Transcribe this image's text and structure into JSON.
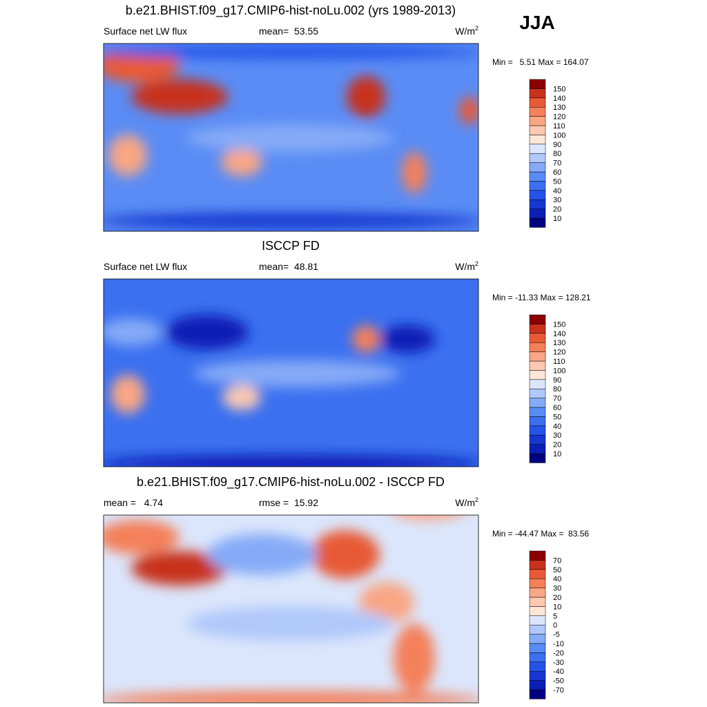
{
  "season": "JJA",
  "panels": [
    {
      "title": "b.e21.BHIST.f09_g17.CMIP6-hist-noLu.002 (yrs 1989-2013)",
      "left": "Surface net LW flux",
      "center": "mean=  53.55",
      "units": {
        "base": "W/m",
        "sup": "2"
      },
      "minmax": "Min =   5.51 Max = 164.07",
      "colorbar": {
        "labels": [
          "10",
          "20",
          "30",
          "40",
          "50",
          "60",
          "70",
          "80",
          "90",
          "100",
          "110",
          "120",
          "130",
          "140",
          "150"
        ],
        "colors": [
          "#000080",
          "#0a1fb5",
          "#1737d0",
          "#2453e8",
          "#3b70f0",
          "#5a8cf5",
          "#85aaf7",
          "#b0c8fa",
          "#dbe6fc",
          "#fde6d6",
          "#fcc8b0",
          "#f9a684",
          "#f4805a",
          "#e85a36",
          "#c8321c",
          "#8b0000"
        ]
      }
    },
    {
      "title": "ISCCP FD",
      "left": "Surface net LW flux",
      "center": "mean=  48.81",
      "units": {
        "base": "W/m",
        "sup": "2"
      },
      "minmax": "Min = -11.33 Max = 128.21",
      "colorbar": {
        "labels": [
          "10",
          "20",
          "30",
          "40",
          "50",
          "60",
          "70",
          "80",
          "90",
          "100",
          "110",
          "120",
          "130",
          "140",
          "150"
        ],
        "colors": [
          "#000080",
          "#0a1fb5",
          "#1737d0",
          "#2453e8",
          "#3b70f0",
          "#5a8cf5",
          "#85aaf7",
          "#b0c8fa",
          "#dbe6fc",
          "#fde6d6",
          "#fcc8b0",
          "#f9a684",
          "#f4805a",
          "#e85a36",
          "#c8321c",
          "#8b0000"
        ]
      }
    },
    {
      "title": "b.e21.BHIST.f09_g17.CMIP6-hist-noLu.002 - ISCCP FD",
      "left": "mean =   4.74",
      "center": "rmse =  15.92",
      "units": {
        "base": "W/m",
        "sup": "2"
      },
      "minmax": "Min = -44.47 Max =  83.56",
      "colorbar": {
        "labels": [
          "-70",
          "-50",
          "-40",
          "-30",
          "-20",
          "-10",
          "-5",
          "0",
          "5",
          "10",
          "20",
          "30",
          "40",
          "50",
          "70"
        ],
        "colors": [
          "#000080",
          "#0a1fb5",
          "#1737d0",
          "#2453e8",
          "#3b70f0",
          "#5a8cf5",
          "#85aaf7",
          "#b0c8fa",
          "#dbe6fc",
          "#fde6d6",
          "#fcc8b0",
          "#f9a684",
          "#f4805a",
          "#e85a36",
          "#c8321c",
          "#8b0000"
        ]
      }
    }
  ]
}
